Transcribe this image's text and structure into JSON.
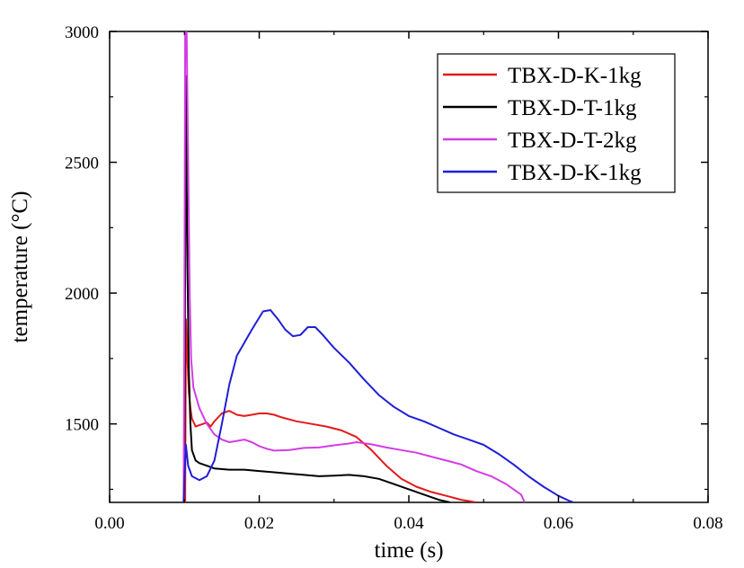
{
  "chart_data": {
    "type": "line",
    "title": "",
    "xlabel": "time (s)",
    "ylabel": "temperature  (°C)",
    "xlim": [
      0.0,
      0.08
    ],
    "ylim": [
      1200,
      3000
    ],
    "grid": false,
    "legend_position": "top-right",
    "x_ticks": [
      0.0,
      0.02,
      0.04,
      0.06,
      0.08
    ],
    "x_tick_labels": [
      "0.00",
      "0.02",
      "0.04",
      "0.06",
      "0.08"
    ],
    "y_ticks": [
      1500,
      2000,
      2500,
      3000
    ],
    "y_tick_labels": [
      "1500",
      "2000",
      "2500",
      "3000"
    ],
    "series": [
      {
        "name": "TBX-D-K-1kg",
        "color": "#e31a1c",
        "points": [
          [
            0.0101,
            1200
          ],
          [
            0.0102,
            1900
          ],
          [
            0.0104,
            1750
          ],
          [
            0.0106,
            1620
          ],
          [
            0.0108,
            1560
          ],
          [
            0.011,
            1520
          ],
          [
            0.0115,
            1490
          ],
          [
            0.012,
            1495
          ],
          [
            0.013,
            1505
          ],
          [
            0.0135,
            1490
          ],
          [
            0.014,
            1510
          ],
          [
            0.015,
            1540
          ],
          [
            0.016,
            1550
          ],
          [
            0.017,
            1535
          ],
          [
            0.018,
            1530
          ],
          [
            0.019,
            1535
          ],
          [
            0.02,
            1540
          ],
          [
            0.021,
            1540
          ],
          [
            0.022,
            1535
          ],
          [
            0.023,
            1525
          ],
          [
            0.025,
            1510
          ],
          [
            0.027,
            1500
          ],
          [
            0.029,
            1490
          ],
          [
            0.031,
            1475
          ],
          [
            0.033,
            1450
          ],
          [
            0.035,
            1400
          ],
          [
            0.037,
            1340
          ],
          [
            0.039,
            1290
          ],
          [
            0.041,
            1260
          ],
          [
            0.043,
            1240
          ],
          [
            0.045,
            1225
          ],
          [
            0.047,
            1210
          ],
          [
            0.048,
            1205
          ],
          [
            0.049,
            1200
          ]
        ]
      },
      {
        "name": "TBX-D-T-1kg",
        "color": "#000000",
        "points": [
          [
            0.0099,
            1200
          ],
          [
            0.01,
            1400
          ],
          [
            0.0102,
            2830
          ],
          [
            0.0104,
            2100
          ],
          [
            0.0106,
            1700
          ],
          [
            0.0108,
            1500
          ],
          [
            0.011,
            1400
          ],
          [
            0.0115,
            1360
          ],
          [
            0.012,
            1350
          ],
          [
            0.013,
            1340
          ],
          [
            0.014,
            1330
          ],
          [
            0.016,
            1325
          ],
          [
            0.018,
            1325
          ],
          [
            0.02,
            1320
          ],
          [
            0.022,
            1315
          ],
          [
            0.024,
            1310
          ],
          [
            0.026,
            1305
          ],
          [
            0.028,
            1300
          ],
          [
            0.03,
            1302
          ],
          [
            0.032,
            1305
          ],
          [
            0.034,
            1300
          ],
          [
            0.036,
            1290
          ],
          [
            0.038,
            1270
          ],
          [
            0.04,
            1250
          ],
          [
            0.042,
            1230
          ],
          [
            0.044,
            1210
          ],
          [
            0.0455,
            1200
          ]
        ]
      },
      {
        "name": "TBX-D-T-2kg",
        "color": "#d43ce3",
        "points": [
          [
            0.0099,
            1200
          ],
          [
            0.01,
            2000
          ],
          [
            0.0101,
            3000
          ],
          [
            0.0103,
            3000
          ],
          [
            0.0105,
            2500
          ],
          [
            0.0107,
            2000
          ],
          [
            0.0109,
            1750
          ],
          [
            0.0112,
            1640
          ],
          [
            0.012,
            1560
          ],
          [
            0.013,
            1500
          ],
          [
            0.014,
            1460
          ],
          [
            0.015,
            1440
          ],
          [
            0.016,
            1430
          ],
          [
            0.017,
            1435
          ],
          [
            0.018,
            1440
          ],
          [
            0.019,
            1430
          ],
          [
            0.02,
            1415
          ],
          [
            0.021,
            1405
          ],
          [
            0.022,
            1398
          ],
          [
            0.024,
            1400
          ],
          [
            0.026,
            1408
          ],
          [
            0.028,
            1410
          ],
          [
            0.03,
            1418
          ],
          [
            0.032,
            1425
          ],
          [
            0.033,
            1430
          ],
          [
            0.035,
            1422
          ],
          [
            0.037,
            1410
          ],
          [
            0.039,
            1400
          ],
          [
            0.041,
            1390
          ],
          [
            0.043,
            1375
          ],
          [
            0.045,
            1360
          ],
          [
            0.047,
            1345
          ],
          [
            0.049,
            1320
          ],
          [
            0.051,
            1300
          ],
          [
            0.053,
            1270
          ],
          [
            0.054,
            1250
          ],
          [
            0.055,
            1230
          ],
          [
            0.0555,
            1200
          ]
        ]
      },
      {
        "name": "TBX-D-K-1kg",
        "color": "#1f1fd6",
        "points": [
          [
            0.0099,
            1200
          ],
          [
            0.01,
            1300
          ],
          [
            0.0102,
            1420
          ],
          [
            0.0105,
            1340
          ],
          [
            0.011,
            1300
          ],
          [
            0.012,
            1285
          ],
          [
            0.013,
            1300
          ],
          [
            0.014,
            1360
          ],
          [
            0.015,
            1500
          ],
          [
            0.016,
            1650
          ],
          [
            0.017,
            1760
          ],
          [
            0.018,
            1810
          ],
          [
            0.019,
            1860
          ],
          [
            0.0205,
            1930
          ],
          [
            0.0215,
            1935
          ],
          [
            0.0225,
            1900
          ],
          [
            0.0235,
            1860
          ],
          [
            0.0245,
            1835
          ],
          [
            0.0255,
            1840
          ],
          [
            0.0265,
            1870
          ],
          [
            0.0275,
            1870
          ],
          [
            0.0285,
            1840
          ],
          [
            0.03,
            1790
          ],
          [
            0.032,
            1735
          ],
          [
            0.034,
            1670
          ],
          [
            0.036,
            1610
          ],
          [
            0.038,
            1565
          ],
          [
            0.04,
            1530
          ],
          [
            0.042,
            1510
          ],
          [
            0.044,
            1485
          ],
          [
            0.046,
            1460
          ],
          [
            0.048,
            1440
          ],
          [
            0.05,
            1420
          ],
          [
            0.052,
            1385
          ],
          [
            0.054,
            1345
          ],
          [
            0.056,
            1300
          ],
          [
            0.058,
            1260
          ],
          [
            0.06,
            1225
          ],
          [
            0.0615,
            1205
          ],
          [
            0.062,
            1200
          ]
        ]
      }
    ]
  }
}
